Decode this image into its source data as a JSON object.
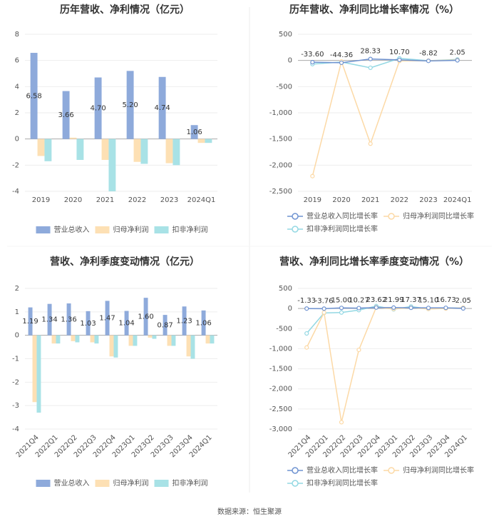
{
  "chart_data": [
    {
      "type": "bar",
      "title": "历年营收、净利情况（亿元）",
      "categories": [
        "2019",
        "2020",
        "2021",
        "2022",
        "2023",
        "2024Q1"
      ],
      "series": [
        {
          "name": "营业总收入",
          "color": "#8eaadb",
          "values": [
            6.58,
            3.66,
            4.7,
            5.2,
            4.74,
            1.06
          ],
          "value_labels": [
            "6.58",
            "3.66",
            "4.70",
            "5.20",
            "4.74",
            "1.06"
          ]
        },
        {
          "name": "归母净利润",
          "color": "#fde0b4",
          "values": [
            -1.3,
            0.1,
            -1.6,
            -1.75,
            -1.85,
            -0.3
          ]
        },
        {
          "name": "扣非净利润",
          "color": "#a8e2e6",
          "values": [
            -1.7,
            -1.6,
            -4.0,
            -1.9,
            -2.0,
            -0.3
          ]
        }
      ],
      "ylim": [
        -4,
        8
      ],
      "yticks": [
        -4,
        -2,
        0,
        2,
        4,
        6,
        8
      ],
      "grid": true,
      "legend": "bottom"
    },
    {
      "type": "line",
      "title": "历年营收、净利同比增长率情况（%）",
      "categories": [
        "2019",
        "2020",
        "2021",
        "2022",
        "2023",
        "2024Q1"
      ],
      "series": [
        {
          "name": "营业总收入同比增长率",
          "color": "#6f93d1",
          "values": [
            -33.6,
            -44.36,
            28.33,
            10.7,
            -8.82,
            2.05
          ],
          "value_labels": [
            "-33.60",
            "-44.36",
            "28.33",
            "10.70",
            "-8.82",
            "2.05"
          ]
        },
        {
          "name": "归母净利润同比增长率",
          "color": "#fcd9a6",
          "values": [
            -2210,
            -20,
            -1590,
            -10,
            -5,
            10
          ]
        },
        {
          "name": "扣非净利润同比增长率",
          "color": "#93d8e3",
          "values": [
            -70,
            -30,
            -140,
            40,
            -5,
            20
          ]
        }
      ],
      "ylim": [
        -2500,
        500
      ],
      "yticks": [
        {
          "value": -2500,
          "label": "-2,500"
        },
        {
          "value": -2000,
          "label": "-2,000"
        },
        {
          "value": -1500,
          "label": "-1,500"
        },
        {
          "value": -1000,
          "label": "-1,000"
        },
        -500,
        0,
        500
      ],
      "grid": true,
      "legend": "bottom"
    },
    {
      "type": "bar",
      "title": "营收、净利季度变动情况（亿元）",
      "categories": [
        "2021Q4",
        "2022Q1",
        "2022Q2",
        "2022Q3",
        "2022Q4",
        "2023Q1",
        "2023Q2",
        "2023Q3",
        "2023Q4",
        "2024Q1"
      ],
      "series": [
        {
          "name": "营业总收入",
          "color": "#8eaadb",
          "values": [
            1.19,
            1.34,
            1.36,
            1.03,
            1.47,
            1.04,
            1.6,
            0.87,
            1.23,
            1.06
          ],
          "value_labels": [
            "1.19",
            "1.34",
            "1.36",
            "1.03",
            "1.47",
            "1.04",
            "1.60",
            "0.87",
            "1.23",
            "1.06"
          ]
        },
        {
          "name": "归母净利润",
          "color": "#fde0b4",
          "values": [
            -2.85,
            -0.35,
            -0.25,
            -0.3,
            -0.9,
            -0.45,
            -0.1,
            -0.45,
            -0.9,
            -0.35
          ]
        },
        {
          "name": "扣非净利润",
          "color": "#a8e2e6",
          "values": [
            -3.3,
            -0.35,
            -0.3,
            -0.35,
            -0.95,
            -0.45,
            -0.15,
            -0.45,
            -1.0,
            -0.35
          ]
        }
      ],
      "ylim": [
        -4,
        2
      ],
      "yticks": [
        -4,
        -3,
        -2,
        -1,
        0,
        1,
        2
      ],
      "grid": true,
      "legend": "bottom"
    },
    {
      "type": "line",
      "title": "营收、净利同比增长率季度变动情况（%）",
      "categories": [
        "2021Q4",
        "2022Q1",
        "2022Q2",
        "2022Q3",
        "2022Q4",
        "2023Q1",
        "2023Q2",
        "2023Q3",
        "2023Q4",
        "2024Q1"
      ],
      "series": [
        {
          "name": "营业总收入同比增长率",
          "color": "#6f93d1",
          "values": [
            -1.33,
            -3.76,
            15.0,
            10.27,
            23.62,
            21.99,
            17.37,
            15.1,
            16.73,
            2.05
          ],
          "value_labels": [
            "-1.33",
            "-3.76",
            "15.00",
            "10.27",
            "23.62",
            "21.99",
            "17.37",
            "15.10",
            "16.73",
            "2.05"
          ]
        },
        {
          "name": "归母净利润同比增长率",
          "color": "#fcd9a6",
          "values": [
            -970,
            -100,
            -2830,
            -1030,
            30,
            -10,
            20,
            -10,
            0,
            20
          ]
        },
        {
          "name": "扣非净利润同比增长率",
          "color": "#93d8e3",
          "values": [
            -620,
            -110,
            -100,
            -40,
            60,
            -20,
            50,
            -10,
            5,
            20
          ]
        }
      ],
      "ylim": [
        -3000,
        500
      ],
      "yticks": [
        {
          "value": -3000,
          "label": "-3,000"
        },
        {
          "value": -2500,
          "label": "-2,500"
        },
        {
          "value": -2000,
          "label": "-2,000"
        },
        {
          "value": -1500,
          "label": "-1,500"
        },
        {
          "value": -1000,
          "label": "-1,000"
        },
        -500,
        0,
        500
      ],
      "grid": true,
      "legend": "bottom"
    }
  ],
  "source": "数据来源：恒生聚源"
}
